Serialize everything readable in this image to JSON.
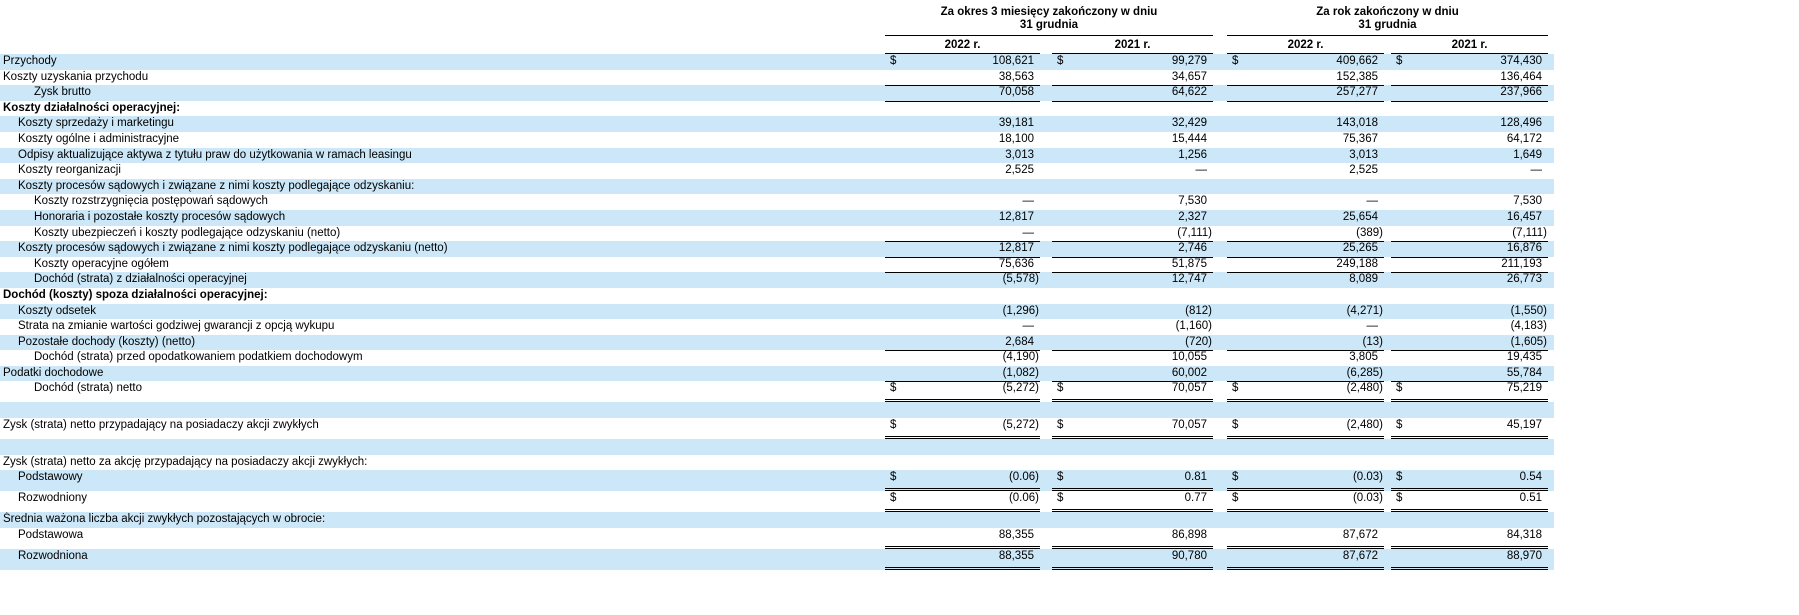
{
  "colors": {
    "row_shade": "#cbe7f8",
    "rule": "#000000",
    "text": "#000000"
  },
  "table": {
    "currency_symbol": "$",
    "col_groups": [
      {
        "title_line1": "Za okres 3 miesięcy zakończony w dniu",
        "title_line2": "31 grudnia",
        "columns": [
          "2022 r.",
          "2021 r."
        ]
      },
      {
        "title_line1": "Za rok zakończony w dniu",
        "title_line2": "31 grudnia",
        "columns": [
          "2022 r.",
          "2021 r."
        ]
      }
    ],
    "rows": [
      {
        "label": "Przychody",
        "indent": 0,
        "bold": false,
        "shaded": true,
        "dollar": true,
        "rule": "none",
        "values": [
          "108,621",
          "99,279",
          "409,662",
          "374,430"
        ]
      },
      {
        "label": "Koszty uzyskania przychodu",
        "indent": 0,
        "bold": false,
        "shaded": false,
        "dollar": false,
        "rule": "single",
        "values": [
          "38,563",
          "34,657",
          "152,385",
          "136,464"
        ]
      },
      {
        "label": "Zysk brutto",
        "indent": 2,
        "bold": false,
        "shaded": true,
        "dollar": false,
        "rule": "single",
        "values": [
          "70,058",
          "64,622",
          "257,277",
          "237,966"
        ]
      },
      {
        "label": "Koszty działalności operacyjnej:",
        "indent": 0,
        "bold": true,
        "shaded": false,
        "dollar": false,
        "rule": "none",
        "values": [
          "",
          "",
          "",
          ""
        ]
      },
      {
        "label": "Koszty sprzedaży i marketingu",
        "indent": 1,
        "bold": false,
        "shaded": true,
        "dollar": false,
        "rule": "none",
        "values": [
          "39,181",
          "32,429",
          "143,018",
          "128,496"
        ]
      },
      {
        "label": "Koszty ogólne i administracyjne",
        "indent": 1,
        "bold": false,
        "shaded": false,
        "dollar": false,
        "rule": "none",
        "values": [
          "18,100",
          "15,444",
          "75,367",
          "64,172"
        ]
      },
      {
        "label": "Odpisy aktualizujące aktywa z tytułu praw do użytkowania w ramach leasingu",
        "indent": 1,
        "bold": false,
        "shaded": true,
        "dollar": false,
        "rule": "none",
        "values": [
          "3,013",
          "1,256",
          "3,013",
          "1,649"
        ]
      },
      {
        "label": "Koszty reorganizacji",
        "indent": 1,
        "bold": false,
        "shaded": false,
        "dollar": false,
        "rule": "none",
        "values": [
          "2,525",
          "—",
          "2,525",
          "—"
        ]
      },
      {
        "label": "Koszty procesów sądowych i związane z nimi koszty podlegające odzyskaniu:",
        "indent": 1,
        "bold": false,
        "shaded": true,
        "dollar": false,
        "rule": "none",
        "values": [
          "",
          "",
          "",
          ""
        ]
      },
      {
        "label": "Koszty rozstrzygnięcia postępowań sądowych",
        "indent": 2,
        "bold": false,
        "shaded": false,
        "dollar": false,
        "rule": "none",
        "values": [
          "—",
          "7,530",
          "—",
          "7,530"
        ]
      },
      {
        "label": "Honoraria i pozostałe koszty procesów sądowych",
        "indent": 2,
        "bold": false,
        "shaded": true,
        "dollar": false,
        "rule": "none",
        "values": [
          "12,817",
          "2,327",
          "25,654",
          "16,457"
        ]
      },
      {
        "label": "Koszty ubezpieczeń i koszty podlegające odzyskaniu (netto)",
        "indent": 2,
        "bold": false,
        "shaded": false,
        "dollar": false,
        "rule": "single",
        "values": [
          "—",
          "(7,111)",
          "(389)",
          "(7,111)"
        ]
      },
      {
        "label": "Koszty procesów sądowych i związane z nimi koszty podlegające odzyskaniu (netto)",
        "indent": 1,
        "bold": false,
        "shaded": true,
        "dollar": false,
        "rule": "single",
        "values": [
          "12,817",
          "2,746",
          "25,265",
          "16,876"
        ]
      },
      {
        "label": "Koszty operacyjne ogółem",
        "indent": 2,
        "bold": false,
        "shaded": false,
        "dollar": false,
        "rule": "single",
        "values": [
          "75,636",
          "51,875",
          "249,188",
          "211,193"
        ]
      },
      {
        "label": "Dochód (strata) z działalności operacyjnej",
        "indent": 2,
        "bold": false,
        "shaded": true,
        "dollar": false,
        "rule": "none",
        "values": [
          "(5,578)",
          "12,747",
          "8,089",
          "26,773"
        ]
      },
      {
        "label": "Dochód (koszty) spoza działalności operacyjnej:",
        "indent": 0,
        "bold": true,
        "shaded": false,
        "dollar": false,
        "rule": "none",
        "values": [
          "",
          "",
          "",
          ""
        ]
      },
      {
        "label": "Koszty odsetek",
        "indent": 1,
        "bold": false,
        "shaded": true,
        "dollar": false,
        "rule": "none",
        "values": [
          "(1,296)",
          "(812)",
          "(4,271)",
          "(1,550)"
        ]
      },
      {
        "label": "Strata na zmianie wartości godziwej gwarancji z opcją wykupu",
        "indent": 1,
        "bold": false,
        "shaded": false,
        "dollar": false,
        "rule": "none",
        "values": [
          "—",
          "(1,160)",
          "—",
          "(4,183)"
        ]
      },
      {
        "label": "Pozostałe dochody (koszty) (netto)",
        "indent": 1,
        "bold": false,
        "shaded": true,
        "dollar": false,
        "rule": "single",
        "values": [
          "2,684",
          "(720)",
          "(13)",
          "(1,605)"
        ]
      },
      {
        "label": "Dochód (strata) przed opodatkowaniem podatkiem dochodowym",
        "indent": 2,
        "bold": false,
        "shaded": false,
        "dollar": false,
        "rule": "none",
        "values": [
          "(4,190)",
          "10,055",
          "3,805",
          "19,435"
        ]
      },
      {
        "label": "Podatki dochodowe",
        "indent": 0,
        "bold": false,
        "shaded": true,
        "dollar": false,
        "rule": "single",
        "values": [
          "(1,082)",
          "60,002",
          "(6,285)",
          "55,784"
        ]
      },
      {
        "label": "Dochód (strata) netto",
        "indent": 2,
        "bold": false,
        "shaded": false,
        "dollar": true,
        "rule": "double",
        "values": [
          "(5,272)",
          "70,057",
          "(2,480)",
          "75,219"
        ]
      },
      {
        "label": "",
        "indent": 0,
        "bold": false,
        "shaded": true,
        "dollar": false,
        "rule": "none",
        "values": [
          "",
          "",
          "",
          ""
        ]
      },
      {
        "label": "Zysk (strata) netto przypadający na posiadaczy akcji zwykłych",
        "indent": 0,
        "bold": false,
        "shaded": false,
        "dollar": true,
        "rule": "double",
        "values": [
          "(5,272)",
          "70,057",
          "(2,480)",
          "45,197"
        ]
      },
      {
        "label": "",
        "indent": 0,
        "bold": false,
        "shaded": true,
        "dollar": false,
        "rule": "none",
        "values": [
          "",
          "",
          "",
          ""
        ]
      },
      {
        "label": "Zysk (strata) netto za akcję przypadający na posiadaczy akcji zwykłych:",
        "indent": 0,
        "bold": false,
        "shaded": false,
        "dollar": false,
        "rule": "none",
        "values": [
          "",
          "",
          "",
          ""
        ]
      },
      {
        "label": "Podstawowy",
        "indent": 1,
        "bold": false,
        "shaded": true,
        "dollar": true,
        "rule": "double",
        "values": [
          "(0.06)",
          "0.81",
          "(0.03)",
          "0.54"
        ]
      },
      {
        "label": "Rozwodniony",
        "indent": 1,
        "bold": false,
        "shaded": false,
        "dollar": true,
        "rule": "double",
        "values": [
          "(0.06)",
          "0.77",
          "(0.03)",
          "0.51"
        ]
      },
      {
        "label": "Średnia ważona liczba akcji zwykłych pozostających w obrocie:",
        "indent": 0,
        "bold": false,
        "shaded": true,
        "dollar": false,
        "rule": "none",
        "values": [
          "",
          "",
          "",
          ""
        ]
      },
      {
        "label": "Podstawowa",
        "indent": 1,
        "bold": false,
        "shaded": false,
        "dollar": false,
        "rule": "double",
        "values": [
          "88,355",
          "86,898",
          "87,672",
          "84,318"
        ]
      },
      {
        "label": "Rozwodniona",
        "indent": 1,
        "bold": false,
        "shaded": true,
        "dollar": false,
        "rule": "double",
        "values": [
          "88,355",
          "90,780",
          "87,672",
          "88,970"
        ]
      }
    ]
  }
}
